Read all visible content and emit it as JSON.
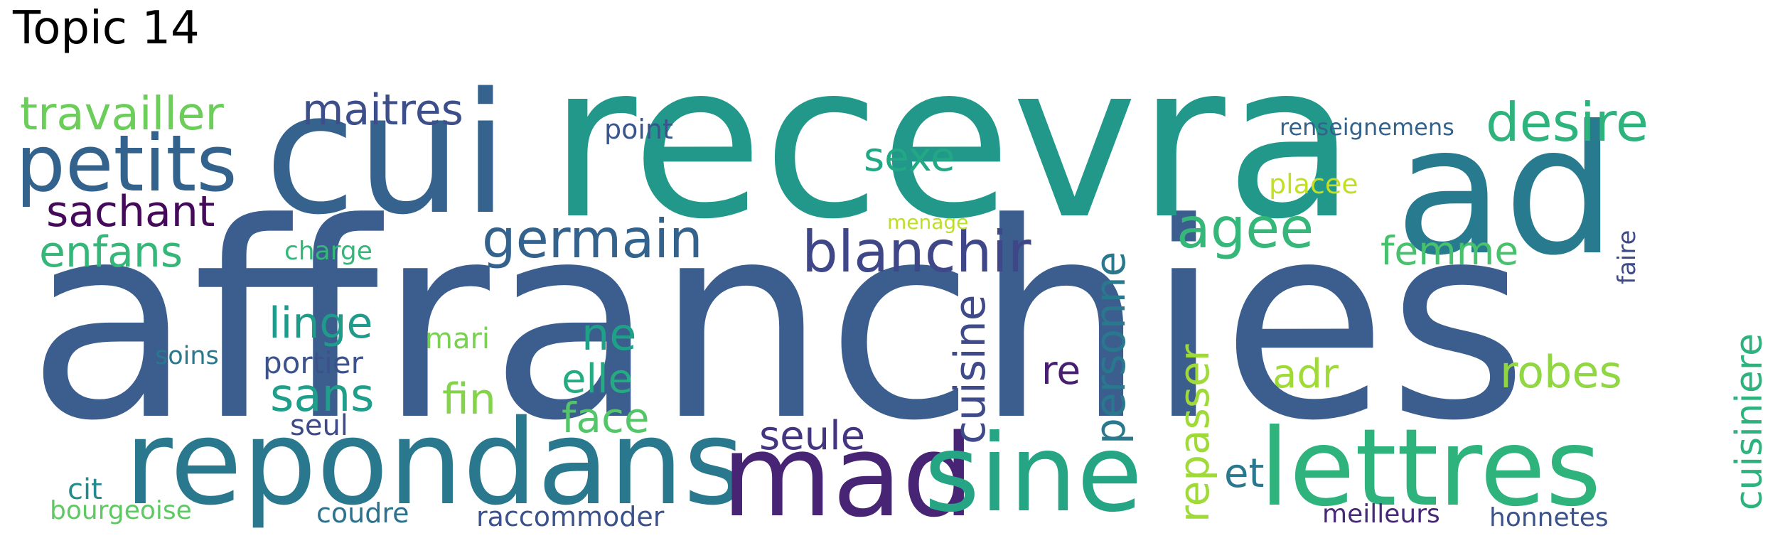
{
  "title": "Topic 14",
  "words": [
    {
      "text": "affranchies",
      "color": "#3b5e8e"
    },
    {
      "text": "recevra",
      "color": "#21988a"
    },
    {
      "text": "cui",
      "color": "#35638d"
    },
    {
      "text": "ad",
      "color": "#287b8e"
    },
    {
      "text": "repondans",
      "color": "#2a788e"
    },
    {
      "text": "mad",
      "color": "#482475"
    },
    {
      "text": "sine",
      "color": "#25a584"
    },
    {
      "text": "lettres",
      "color": "#2eb37c"
    },
    {
      "text": "petits",
      "color": "#33638d"
    },
    {
      "text": "travailler",
      "color": "#6ccd5a"
    },
    {
      "text": "maitres",
      "color": "#3c4f8a"
    },
    {
      "text": "sachant",
      "color": "#450b5a"
    },
    {
      "text": "enfans",
      "color": "#35b779"
    },
    {
      "text": "germain",
      "color": "#33628d"
    },
    {
      "text": "blanchir",
      "color": "#3f4788"
    },
    {
      "text": "desire",
      "color": "#2eb37c"
    },
    {
      "text": "agee",
      "color": "#35b779"
    },
    {
      "text": "femme",
      "color": "#48c16e"
    },
    {
      "text": "sexe",
      "color": "#22a884"
    },
    {
      "text": "point",
      "color": "#3a548c"
    },
    {
      "text": "renseignemens",
      "color": "#33628d"
    },
    {
      "text": "placee",
      "color": "#c2df23"
    },
    {
      "text": "menage",
      "color": "#bddf26"
    },
    {
      "text": "charge",
      "color": "#35b779"
    },
    {
      "text": "linge",
      "color": "#1e9b8a"
    },
    {
      "text": "mari",
      "color": "#7ad151"
    },
    {
      "text": "soins",
      "color": "#2a788e"
    },
    {
      "text": "portier",
      "color": "#3b528b"
    },
    {
      "text": "sans",
      "color": "#1f9e89"
    },
    {
      "text": "fin",
      "color": "#84d44b"
    },
    {
      "text": "ne",
      "color": "#1fa187"
    },
    {
      "text": "elle",
      "color": "#25ab82"
    },
    {
      "text": "face",
      "color": "#54c568"
    },
    {
      "text": "seul",
      "color": "#3e4a89"
    },
    {
      "text": "seule",
      "color": "#453581"
    },
    {
      "text": "cuisine",
      "color": "#3e4a89"
    },
    {
      "text": "personne",
      "color": "#2a788e"
    },
    {
      "text": "re",
      "color": "#481f70"
    },
    {
      "text": "repasser",
      "color": "#a0da39"
    },
    {
      "text": "adr",
      "color": "#a0da39"
    },
    {
      "text": "robes",
      "color": "#90d743"
    },
    {
      "text": "faire",
      "color": "#3e4a89"
    },
    {
      "text": "cuisiniere",
      "color": "#2db27d"
    },
    {
      "text": "et",
      "color": "#2a788e"
    },
    {
      "text": "cit",
      "color": "#238a8d"
    },
    {
      "text": "bourgeoise",
      "color": "#5ec962"
    },
    {
      "text": "coudre",
      "color": "#2c728e"
    },
    {
      "text": "raccommoder",
      "color": "#3b528b"
    },
    {
      "text": "meilleurs",
      "color": "#482878"
    },
    {
      "text": "honnetes",
      "color": "#3b528b"
    }
  ]
}
